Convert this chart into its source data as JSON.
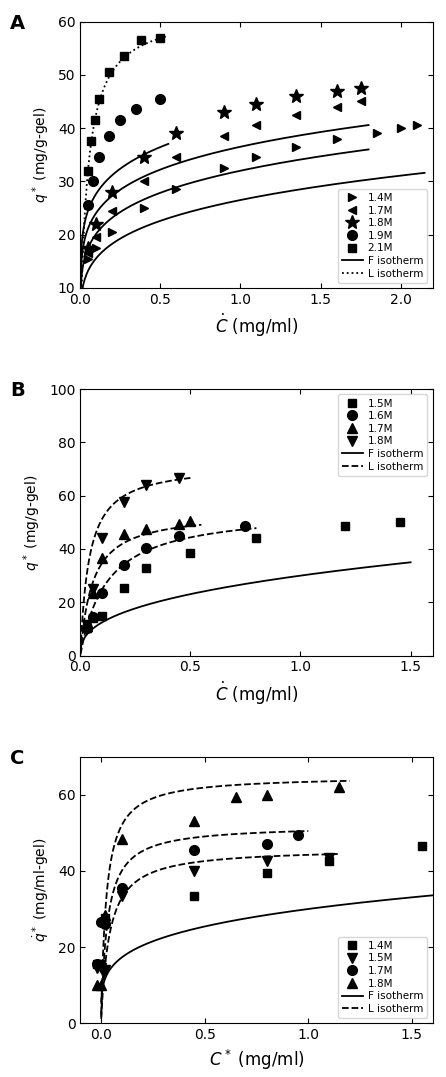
{
  "panel_A": {
    "label": "A",
    "xlabel": "$\\dot{C}$ (mg/ml)",
    "ylabel": "$q^*$ (mg/g-gel)",
    "xlim": [
      0,
      2.2
    ],
    "ylim": [
      10,
      60
    ],
    "yticks": [
      10,
      20,
      30,
      40,
      50,
      60
    ],
    "xticks": [
      0.0,
      0.5,
      1.0,
      1.5,
      2.0
    ],
    "series": [
      {
        "label": "1.4M",
        "marker": ">",
        "fit": "F",
        "x": [
          0.05,
          0.1,
          0.2,
          0.4,
          0.6,
          0.9,
          1.1,
          1.35,
          1.6,
          1.85,
          2.0,
          2.1
        ],
        "y": [
          15.5,
          17.5,
          20.5,
          25.0,
          28.5,
          32.5,
          34.5,
          36.5,
          38.0,
          39.0,
          40.0,
          40.5
        ],
        "fit_x": [
          0.001,
          2.15
        ],
        "fit_K": 26.5,
        "fit_n": 0.23
      },
      {
        "label": "1.7M",
        "marker": "<",
        "fit": "F",
        "x": [
          0.05,
          0.1,
          0.2,
          0.4,
          0.6,
          0.9,
          1.1,
          1.35,
          1.6,
          1.75
        ],
        "y": [
          16.5,
          19.5,
          24.5,
          30.0,
          34.5,
          38.5,
          40.5,
          42.5,
          44.0,
          45.0
        ],
        "fit_x": [
          0.001,
          1.8
        ],
        "fit_K": 32.0,
        "fit_n": 0.2
      },
      {
        "label": "1.8M",
        "marker": "*",
        "fit": "F",
        "x": [
          0.05,
          0.1,
          0.2,
          0.4,
          0.6,
          0.9,
          1.1,
          1.35,
          1.6,
          1.75
        ],
        "y": [
          17.5,
          22.0,
          28.0,
          34.5,
          39.0,
          43.0,
          44.5,
          46.0,
          47.0,
          47.5
        ],
        "fit_x": [
          0.001,
          1.8
        ],
        "fit_K": 36.5,
        "fit_n": 0.18
      },
      {
        "label": "1.9M",
        "marker": "o",
        "fit": "F",
        "x": [
          0.05,
          0.08,
          0.12,
          0.18,
          0.25,
          0.35,
          0.5
        ],
        "y": [
          25.5,
          30.0,
          34.5,
          38.5,
          41.5,
          43.5,
          45.5
        ],
        "fit_x": [
          0.001,
          0.55
        ],
        "fit_K": 41.0,
        "fit_n": 0.17
      },
      {
        "label": "2.1M",
        "marker": "s",
        "fit": "L",
        "x": [
          0.05,
          0.07,
          0.09,
          0.12,
          0.18,
          0.27,
          0.38,
          0.5
        ],
        "y": [
          32.0,
          37.5,
          41.5,
          45.5,
          50.5,
          53.5,
          56.5,
          57.0
        ],
        "fit_x": [
          0.001,
          0.55
        ],
        "fit_qm": 62.0,
        "fit_Kd": 0.045
      }
    ]
  },
  "panel_B": {
    "label": "B",
    "xlabel": "$\\dot{C}$ (mg/ml)",
    "ylabel": "$q^*$ (mg/g-gel)",
    "xlim": [
      0,
      1.6
    ],
    "ylim": [
      0,
      100
    ],
    "yticks": [
      0,
      20,
      40,
      60,
      80,
      100
    ],
    "xticks": [
      0.0,
      0.5,
      1.0,
      1.5
    ],
    "series": [
      {
        "label": "1.5M",
        "marker": "s",
        "fit": "F",
        "x": [
          0.03,
          0.06,
          0.1,
          0.2,
          0.3,
          0.5,
          0.8,
          1.2,
          1.45
        ],
        "y": [
          10.5,
          14.0,
          15.0,
          25.5,
          33.0,
          38.5,
          44.0,
          48.5,
          50.0
        ],
        "fit_x": [
          0.001,
          1.5
        ],
        "fit_K": 30.0,
        "fit_n": 0.38
      },
      {
        "label": "1.6M",
        "marker": "o",
        "fit": "L",
        "x": [
          0.03,
          0.06,
          0.1,
          0.2,
          0.3,
          0.45,
          0.75
        ],
        "y": [
          10.5,
          14.5,
          23.5,
          34.0,
          40.5,
          45.0,
          48.5
        ],
        "fit_x": [
          0.001,
          0.8
        ],
        "fit_qm": 55.0,
        "fit_Kd": 0.12
      },
      {
        "label": "1.7M",
        "marker": "^",
        "fit": "L",
        "x": [
          0.03,
          0.06,
          0.1,
          0.2,
          0.3,
          0.45,
          0.5
        ],
        "y": [
          11.0,
          23.5,
          36.5,
          45.5,
          47.5,
          49.5,
          50.5
        ],
        "fit_x": [
          0.001,
          0.55
        ],
        "fit_qm": 54.0,
        "fit_Kd": 0.055
      },
      {
        "label": "1.8M",
        "marker": "v",
        "fit": "L",
        "x": [
          0.03,
          0.06,
          0.1,
          0.2,
          0.3,
          0.45
        ],
        "y": [
          11.5,
          25.0,
          44.0,
          57.5,
          64.0,
          66.5
        ],
        "fit_x": [
          0.001,
          0.5
        ],
        "fit_qm": 72.0,
        "fit_Kd": 0.04
      }
    ]
  },
  "panel_C": {
    "label": "C",
    "xlabel": "$C^*$ (mg/ml)",
    "ylabel": "$\\dot{q}^*$ (mg/ml-gel)",
    "xlim": [
      -0.1,
      1.6
    ],
    "ylim": [
      0,
      70
    ],
    "yticks": [
      0,
      20,
      40,
      60
    ],
    "xticks": [
      0.0,
      0.5,
      1.0,
      1.5
    ],
    "series": [
      {
        "label": "1.4M",
        "marker": "s",
        "fit": "F",
        "x": [
          -0.02,
          0.0,
          0.02,
          0.45,
          0.8,
          1.1,
          1.55
        ],
        "y": [
          15.5,
          15.5,
          27.5,
          33.5,
          39.5,
          42.5,
          46.5
        ],
        "fit_x": [
          0.001,
          1.6
        ],
        "fit_K": 30.0,
        "fit_n": 0.24
      },
      {
        "label": "1.5M",
        "marker": "v",
        "fit": "L",
        "x": [
          -0.02,
          0.0,
          0.02,
          0.1,
          0.45,
          0.8,
          1.1
        ],
        "y": [
          14.5,
          14.5,
          14.0,
          33.5,
          40.0,
          42.5,
          43.5
        ],
        "fit_x": [
          0.001,
          1.15
        ],
        "fit_qm": 46.0,
        "fit_Kd": 0.04
      },
      {
        "label": "1.7M",
        "marker": "o",
        "fit": "L",
        "x": [
          -0.02,
          0.0,
          0.02,
          0.1,
          0.45,
          0.8,
          0.95
        ],
        "y": [
          15.5,
          26.5,
          26.0,
          35.5,
          45.5,
          47.0,
          49.5
        ],
        "fit_x": [
          0.001,
          1.0
        ],
        "fit_qm": 52.0,
        "fit_Kd": 0.03
      },
      {
        "label": "1.8M",
        "marker": "^",
        "fit": "L",
        "x": [
          -0.02,
          0.0,
          0.02,
          0.1,
          0.45,
          0.65,
          0.8,
          1.15
        ],
        "y": [
          10.0,
          10.0,
          28.5,
          48.5,
          53.0,
          59.5,
          60.0,
          62.0
        ],
        "fit_x": [
          0.001,
          1.2
        ],
        "fit_qm": 65.0,
        "fit_Kd": 0.025
      }
    ]
  }
}
